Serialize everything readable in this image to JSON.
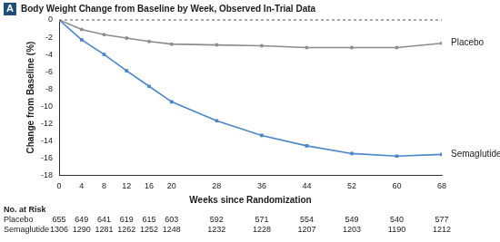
{
  "chart_data": {
    "type": "line",
    "panel": "A",
    "title": "Body Weight Change from Baseline by Week, Observed In-Trial Data",
    "x_label": "Weeks since Randomization",
    "y_label": "Change from Baseline (%)",
    "x": [
      0,
      4,
      8,
      12,
      16,
      20,
      28,
      36,
      44,
      52,
      60,
      68
    ],
    "series": [
      {
        "name": "Placebo",
        "color": "#8c8c8c",
        "marker": "circle",
        "line_style": "solid",
        "values": [
          0,
          -1.1,
          -1.7,
          -2.1,
          -2.5,
          -2.8,
          -2.9,
          -3.0,
          -3.2,
          -3.2,
          -3.2,
          -2.7
        ]
      },
      {
        "name": "Semaglutide",
        "color": "#4a86c8",
        "marker": "square",
        "line_style": "solid",
        "values": [
          0,
          -2.3,
          -4.0,
          -5.9,
          -7.7,
          -9.5,
          -11.7,
          -13.4,
          -14.6,
          -15.5,
          -15.8,
          -15.6
        ]
      }
    ],
    "xlim": [
      0,
      68
    ],
    "xticks": [
      0,
      4,
      8,
      12,
      16,
      20,
      28,
      36,
      44,
      52,
      60,
      68
    ],
    "ylim": [
      -18,
      0
    ],
    "yticks": [
      -18,
      -16,
      -14,
      -12,
      -10,
      -8,
      -6,
      -4,
      -2,
      0
    ],
    "grid": false,
    "at_risk": {
      "title": "No. at Risk",
      "rows": [
        {
          "name": "Placebo",
          "values": [
            655,
            649,
            641,
            619,
            615,
            603,
            592,
            571,
            554,
            549,
            540,
            577
          ]
        },
        {
          "name": "Semaglutide",
          "values": [
            1306,
            1290,
            1281,
            1262,
            1252,
            1248,
            1232,
            1228,
            1207,
            1203,
            1190,
            1212
          ]
        }
      ]
    }
  }
}
